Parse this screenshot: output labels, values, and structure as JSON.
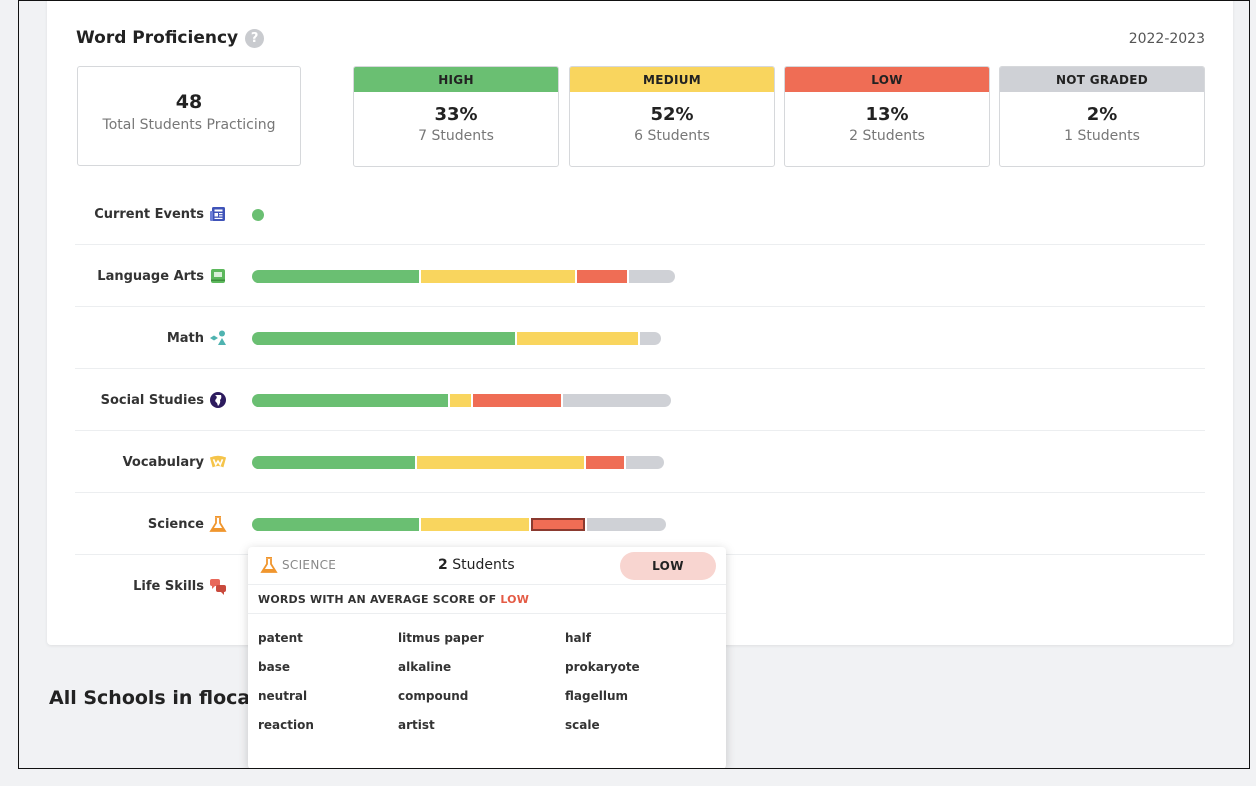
{
  "header": {
    "title": "Word Proficiency",
    "help_glyph": "?",
    "year": "2022-2023"
  },
  "total": {
    "value": "48",
    "label": "Total Students Practicing"
  },
  "levels": [
    {
      "key": "high",
      "label": "HIGH",
      "pct": "33%",
      "students": "7 Students",
      "color": "#6abf72"
    },
    {
      "key": "medium",
      "label": "MEDIUM",
      "pct": "52%",
      "students": "6 Students",
      "color": "#f9d55e"
    },
    {
      "key": "low",
      "label": "LOW",
      "pct": "13%",
      "students": "2 Students",
      "color": "#ef6d55"
    },
    {
      "key": "not-graded",
      "label": "NOT GRADED",
      "pct": "2%",
      "students": "1 Students",
      "color": "#cfd1d6"
    }
  ],
  "subjects": [
    {
      "key": "current-events",
      "label": "Current Events",
      "icon": "newspaper-icon",
      "segments": []
    },
    {
      "key": "language-arts",
      "label": "Language Arts",
      "icon": "book-icon",
      "segments": [
        0.4,
        0.37,
        0.12,
        0.11
      ]
    },
    {
      "key": "math",
      "label": "Math",
      "icon": "shapes-icon",
      "segments": [
        0.63,
        0.29,
        0.0,
        0.05
      ]
    },
    {
      "key": "social-studies",
      "label": "Social Studies",
      "icon": "globe-icon",
      "segments": [
        0.47,
        0.05,
        0.21,
        0.26
      ]
    },
    {
      "key": "vocabulary",
      "label": "Vocabulary",
      "icon": "word-w-icon",
      "segments": [
        0.39,
        0.4,
        0.09,
        0.09
      ]
    },
    {
      "key": "science",
      "label": "Science",
      "icon": "flask-icon",
      "segments": [
        0.4,
        0.26,
        0.13,
        0.19
      ]
    },
    {
      "key": "life-skills",
      "label": "Life Skills",
      "icon": "chat-bubbles-icon",
      "segments": []
    }
  ],
  "section_title": "All Schools in floca",
  "tooltip": {
    "subject": "SCIENCE",
    "count": "2",
    "count_suffix": "Students",
    "badge": "LOW",
    "subtitle_prefix": "WORDS WITH AN AVERAGE SCORE OF",
    "subtitle_level": "LOW",
    "words": [
      "patent",
      "litmus paper",
      "half",
      "base",
      "alkaline",
      "prokaryote",
      "neutral",
      "compound",
      "flagellum",
      "reaction",
      "artist",
      "scale"
    ]
  }
}
